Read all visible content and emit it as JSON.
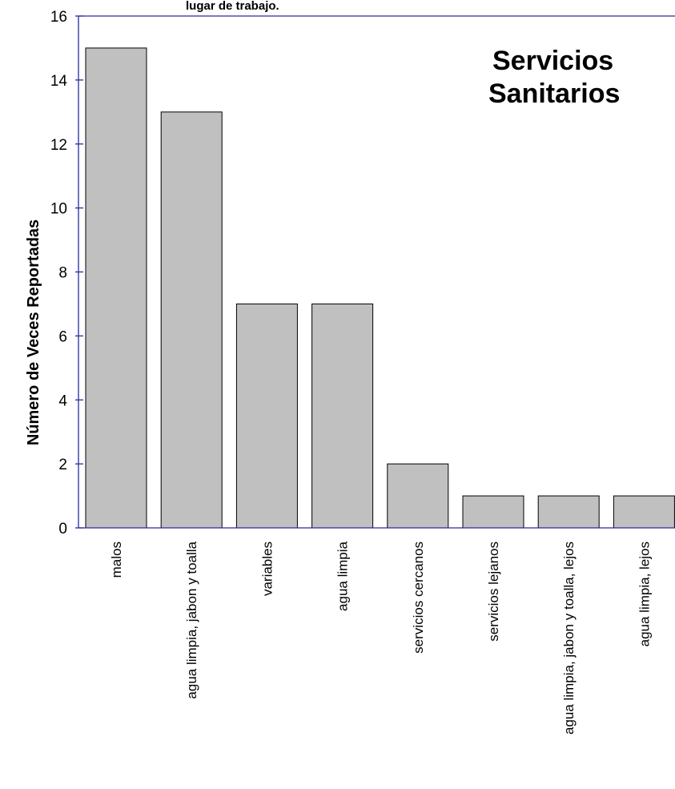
{
  "chart_data": {
    "type": "bar",
    "title": "Servicios Sanitarios",
    "title_lines": [
      "Servicios",
      "Sanitarios"
    ],
    "top_caption": "lugar de trabajo.",
    "xlabel": "",
    "ylabel": "Número de Veces Reportadas",
    "ylim": [
      0,
      16
    ],
    "yticks": [
      0,
      2,
      4,
      6,
      8,
      10,
      12,
      14,
      16
    ],
    "ytick_labels": [
      "0",
      "2",
      "4",
      "6",
      "8",
      "10",
      "12",
      "14",
      "16"
    ],
    "grid": false,
    "legend": "none",
    "bar_color": "#c0c0c0",
    "axis_color": "#2a2aa0",
    "categories": [
      "malos",
      "agua limpia, jabon y toalla",
      "variables",
      "agua  limpia",
      "servicios cercanos",
      "servicios lejanos",
      "agua limpia, jabon y toalla, lejos",
      "agua limpia, lejos"
    ],
    "values": [
      15,
      13,
      7,
      7,
      2,
      1,
      1,
      1
    ]
  }
}
